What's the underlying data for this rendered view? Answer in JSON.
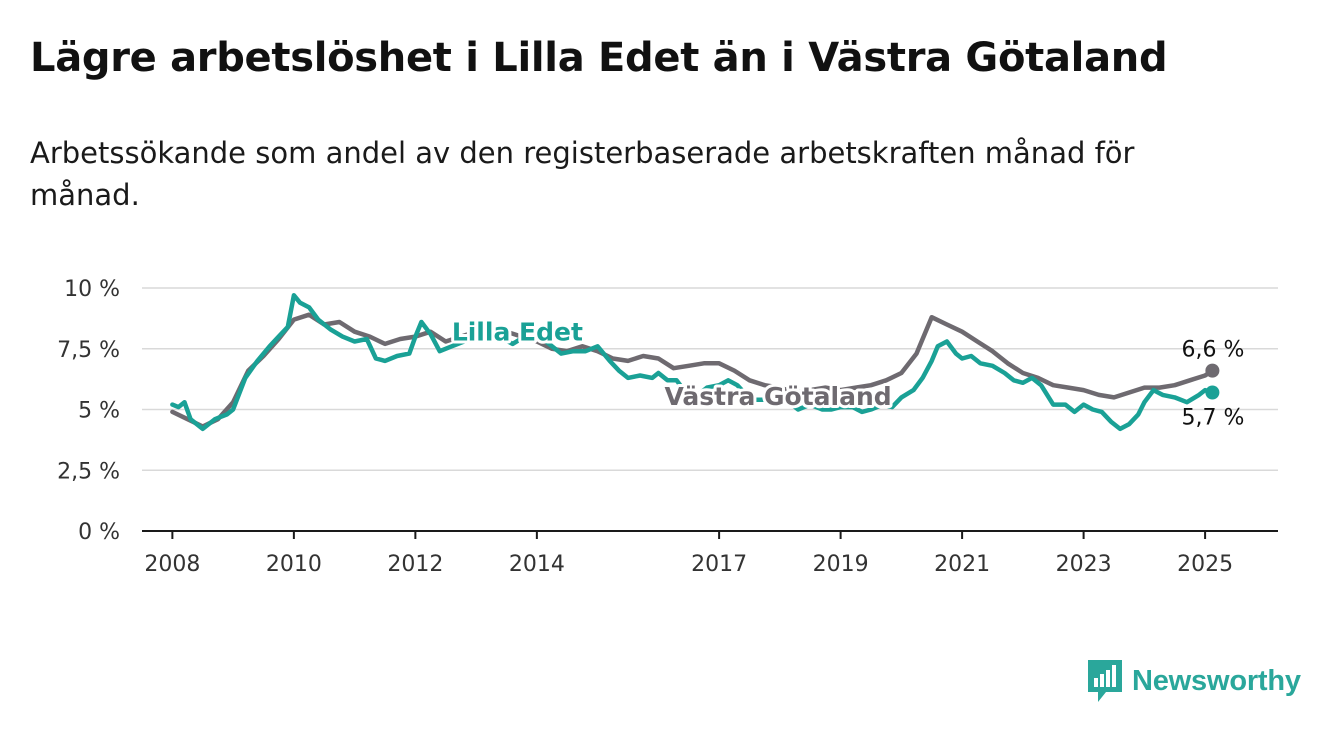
{
  "title": "Lägre arbetslöshet i Lilla Edet än i Västra Götaland",
  "subtitle": "Arbetssökande som andel av den registerbaserade arbetskraften månad för månad.",
  "brand": {
    "name": "Newsworthy",
    "icon": "newsworthy-bar-chart-icon",
    "color": "#2aa79b"
  },
  "chart_data": {
    "type": "line",
    "ylim": [
      0,
      10
    ],
    "xlim": [
      2007.5,
      2026.2
    ],
    "y_ticks": [
      0,
      2.5,
      5,
      7.5,
      10
    ],
    "y_tick_labels": [
      "0 %",
      "2,5 %",
      "5 %",
      "7,5 %",
      "10 %"
    ],
    "x_ticks": [
      2008,
      2010,
      2012,
      2014,
      2017,
      2019,
      2021,
      2023,
      2025
    ],
    "x_tick_labels": [
      "2008",
      "2010",
      "2012",
      "2014",
      "2017",
      "2019",
      "2021",
      "2023",
      "2025"
    ],
    "grid": "horizontal",
    "series": [
      {
        "name": "Västra Götaland",
        "color": "#6e6a70",
        "end_label": "6,6 %",
        "points": [
          [
            2008.0,
            4.9
          ],
          [
            2008.25,
            4.6
          ],
          [
            2008.5,
            4.3
          ],
          [
            2008.75,
            4.6
          ],
          [
            2009.0,
            5.3
          ],
          [
            2009.25,
            6.6
          ],
          [
            2009.5,
            7.2
          ],
          [
            2009.75,
            7.9
          ],
          [
            2010.0,
            8.7
          ],
          [
            2010.25,
            8.9
          ],
          [
            2010.5,
            8.5
          ],
          [
            2010.75,
            8.6
          ],
          [
            2011.0,
            8.2
          ],
          [
            2011.25,
            8.0
          ],
          [
            2011.5,
            7.7
          ],
          [
            2011.75,
            7.9
          ],
          [
            2012.0,
            8.0
          ],
          [
            2012.25,
            8.2
          ],
          [
            2012.5,
            7.8
          ],
          [
            2012.75,
            8.0
          ],
          [
            2013.0,
            8.2
          ],
          [
            2013.25,
            8.3
          ],
          [
            2013.5,
            8.2
          ],
          [
            2013.75,
            8.0
          ],
          [
            2014.0,
            7.8
          ],
          [
            2014.25,
            7.5
          ],
          [
            2014.5,
            7.4
          ],
          [
            2014.75,
            7.6
          ],
          [
            2015.0,
            7.4
          ],
          [
            2015.25,
            7.1
          ],
          [
            2015.5,
            7.0
          ],
          [
            2015.75,
            7.2
          ],
          [
            2016.0,
            7.1
          ],
          [
            2016.25,
            6.7
          ],
          [
            2016.5,
            6.8
          ],
          [
            2016.75,
            6.9
          ],
          [
            2017.0,
            6.9
          ],
          [
            2017.25,
            6.6
          ],
          [
            2017.5,
            6.2
          ],
          [
            2017.75,
            6.0
          ],
          [
            2018.0,
            5.9
          ],
          [
            2018.25,
            5.7
          ],
          [
            2018.5,
            5.8
          ],
          [
            2018.75,
            5.9
          ],
          [
            2019.0,
            5.8
          ],
          [
            2019.25,
            5.9
          ],
          [
            2019.5,
            6.0
          ],
          [
            2019.75,
            6.2
          ],
          [
            2020.0,
            6.5
          ],
          [
            2020.25,
            7.3
          ],
          [
            2020.5,
            8.8
          ],
          [
            2020.75,
            8.5
          ],
          [
            2021.0,
            8.2
          ],
          [
            2021.25,
            7.8
          ],
          [
            2021.5,
            7.4
          ],
          [
            2021.75,
            6.9
          ],
          [
            2022.0,
            6.5
          ],
          [
            2022.25,
            6.3
          ],
          [
            2022.5,
            6.0
          ],
          [
            2022.75,
            5.9
          ],
          [
            2023.0,
            5.8
          ],
          [
            2023.25,
            5.6
          ],
          [
            2023.5,
            5.5
          ],
          [
            2023.75,
            5.7
          ],
          [
            2024.0,
            5.9
          ],
          [
            2024.25,
            5.9
          ],
          [
            2024.5,
            6.0
          ],
          [
            2024.75,
            6.2
          ],
          [
            2025.0,
            6.4
          ],
          [
            2025.12,
            6.6
          ]
        ]
      },
      {
        "name": "Lilla Edet",
        "color": "#1aa196",
        "end_label": "5,7 %",
        "points": [
          [
            2008.0,
            5.2
          ],
          [
            2008.1,
            5.1
          ],
          [
            2008.2,
            5.3
          ],
          [
            2008.3,
            4.6
          ],
          [
            2008.45,
            4.3
          ],
          [
            2008.5,
            4.2
          ],
          [
            2008.7,
            4.6
          ],
          [
            2008.9,
            4.8
          ],
          [
            2009.0,
            5.0
          ],
          [
            2009.2,
            6.3
          ],
          [
            2009.4,
            7.0
          ],
          [
            2009.6,
            7.6
          ],
          [
            2009.75,
            8.0
          ],
          [
            2009.9,
            8.4
          ],
          [
            2010.0,
            9.7
          ],
          [
            2010.1,
            9.4
          ],
          [
            2010.25,
            9.2
          ],
          [
            2010.4,
            8.7
          ],
          [
            2010.6,
            8.3
          ],
          [
            2010.8,
            8.0
          ],
          [
            2011.0,
            7.8
          ],
          [
            2011.2,
            7.9
          ],
          [
            2011.35,
            7.1
          ],
          [
            2011.5,
            7.0
          ],
          [
            2011.7,
            7.2
          ],
          [
            2011.9,
            7.3
          ],
          [
            2012.0,
            8.0
          ],
          [
            2012.1,
            8.6
          ],
          [
            2012.25,
            8.1
          ],
          [
            2012.4,
            7.4
          ],
          [
            2012.6,
            7.6
          ],
          [
            2012.8,
            7.8
          ],
          [
            2013.0,
            8.0
          ],
          [
            2013.3,
            8.1
          ],
          [
            2013.6,
            7.7
          ],
          [
            2013.8,
            8.0
          ],
          [
            2014.0,
            8.1
          ],
          [
            2014.2,
            7.7
          ],
          [
            2014.4,
            7.3
          ],
          [
            2014.6,
            7.4
          ],
          [
            2014.8,
            7.4
          ],
          [
            2015.0,
            7.6
          ],
          [
            2015.2,
            7.0
          ],
          [
            2015.35,
            6.6
          ],
          [
            2015.5,
            6.3
          ],
          [
            2015.7,
            6.4
          ],
          [
            2015.9,
            6.3
          ],
          [
            2016.0,
            6.5
          ],
          [
            2016.15,
            6.2
          ],
          [
            2016.3,
            6.2
          ],
          [
            2016.45,
            5.7
          ],
          [
            2016.6,
            5.5
          ],
          [
            2016.8,
            5.9
          ],
          [
            2017.0,
            6.0
          ],
          [
            2017.15,
            6.2
          ],
          [
            2017.3,
            6.0
          ],
          [
            2017.45,
            5.6
          ],
          [
            2017.6,
            5.4
          ],
          [
            2017.8,
            5.4
          ],
          [
            2018.0,
            5.5
          ],
          [
            2018.15,
            5.3
          ],
          [
            2018.3,
            5.0
          ],
          [
            2018.5,
            5.2
          ],
          [
            2018.7,
            5.0
          ],
          [
            2018.85,
            5.0
          ],
          [
            2019.0,
            5.1
          ],
          [
            2019.2,
            5.1
          ],
          [
            2019.35,
            4.9
          ],
          [
            2019.5,
            5.0
          ],
          [
            2019.7,
            5.2
          ],
          [
            2019.85,
            5.1
          ],
          [
            2020.0,
            5.5
          ],
          [
            2020.2,
            5.8
          ],
          [
            2020.35,
            6.3
          ],
          [
            2020.5,
            7.0
          ],
          [
            2020.6,
            7.6
          ],
          [
            2020.75,
            7.8
          ],
          [
            2020.9,
            7.3
          ],
          [
            2021.0,
            7.1
          ],
          [
            2021.15,
            7.2
          ],
          [
            2021.3,
            6.9
          ],
          [
            2021.5,
            6.8
          ],
          [
            2021.7,
            6.5
          ],
          [
            2021.85,
            6.2
          ],
          [
            2022.0,
            6.1
          ],
          [
            2022.15,
            6.3
          ],
          [
            2022.3,
            6.0
          ],
          [
            2022.5,
            5.2
          ],
          [
            2022.7,
            5.2
          ],
          [
            2022.85,
            4.9
          ],
          [
            2023.0,
            5.2
          ],
          [
            2023.15,
            5.0
          ],
          [
            2023.3,
            4.9
          ],
          [
            2023.45,
            4.5
          ],
          [
            2023.6,
            4.2
          ],
          [
            2023.75,
            4.4
          ],
          [
            2023.9,
            4.8
          ],
          [
            2024.0,
            5.3
          ],
          [
            2024.15,
            5.8
          ],
          [
            2024.3,
            5.6
          ],
          [
            2024.5,
            5.5
          ],
          [
            2024.7,
            5.3
          ],
          [
            2024.9,
            5.6
          ],
          [
            2025.0,
            5.8
          ],
          [
            2025.12,
            5.7
          ]
        ]
      }
    ]
  }
}
